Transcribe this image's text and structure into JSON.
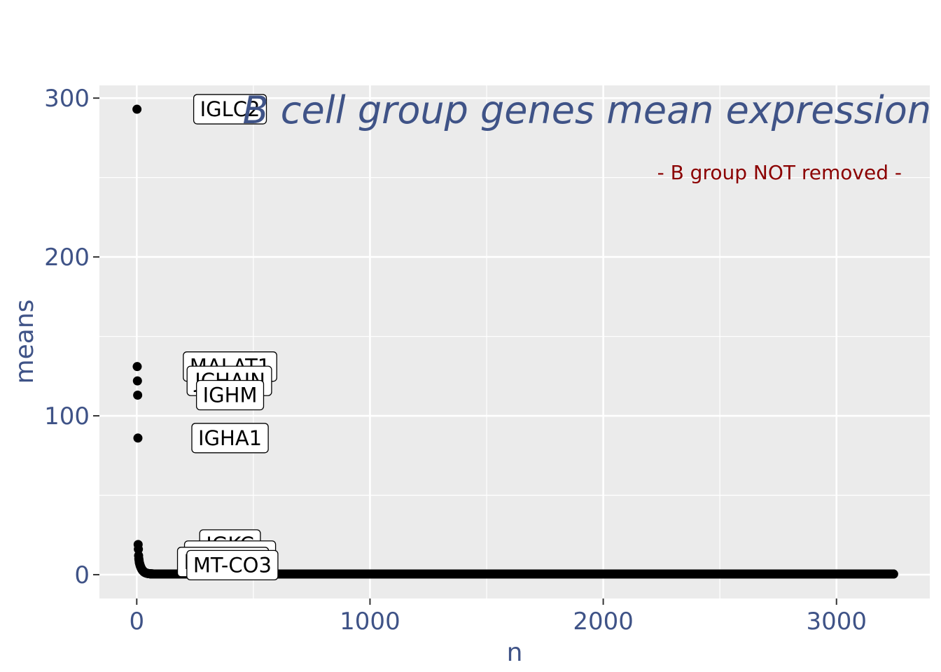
{
  "chart_data": {
    "type": "scatter",
    "title": "B cell group genes mean expression",
    "subtitle": "- B group NOT removed -",
    "xlabel": "n",
    "ylabel": "means",
    "xlim": [
      -160,
      3400
    ],
    "ylim": [
      -15,
      308
    ],
    "x_ticks": [
      0,
      1000,
      2000,
      3000
    ],
    "y_ticks": [
      0,
      100,
      200,
      300
    ],
    "x_tick_labels": [
      "0",
      "1000",
      "2000",
      "3000"
    ],
    "y_tick_labels": [
      "0",
      "100",
      "200",
      "300"
    ],
    "grid": true,
    "n_points": 3245,
    "points_highlight": [
      {
        "x": 1,
        "y": 293
      },
      {
        "x": 2,
        "y": 131
      },
      {
        "x": 3,
        "y": 122
      },
      {
        "x": 4,
        "y": 113
      },
      {
        "x": 5,
        "y": 86
      },
      {
        "x": 6,
        "y": 19
      },
      {
        "x": 7,
        "y": 16
      },
      {
        "x": 8,
        "y": 12
      },
      {
        "x": 9,
        "y": 10
      },
      {
        "x": 10,
        "y": 9
      }
    ],
    "tail": {
      "decay_y0": 8,
      "decay_scale": 12,
      "floor": 0.4
    },
    "labels": [
      {
        "text": "IGLC2",
        "x": 400,
        "y": 293
      },
      {
        "text": "MALAT1",
        "x": 400,
        "y": 131
      },
      {
        "text": "JCHAIN",
        "x": 400,
        "y": 122
      },
      {
        "text": "IGHM",
        "x": 400,
        "y": 113
      },
      {
        "text": "IGHA1",
        "x": 400,
        "y": 86
      },
      {
        "text": "IGKC",
        "x": 400,
        "y": 19
      },
      {
        "text": "MT-CO1",
        "x": 400,
        "y": 12
      },
      {
        "text": "MT-CO2",
        "x": 370,
        "y": 8
      },
      {
        "text": "MT-CO3",
        "x": 410,
        "y": 6
      }
    ],
    "colors": {
      "panel": "#ebebeb",
      "grid": "#ffffff",
      "point": "#000000",
      "axis_text": "#3f5387",
      "subtitle": "#8b0000"
    }
  }
}
